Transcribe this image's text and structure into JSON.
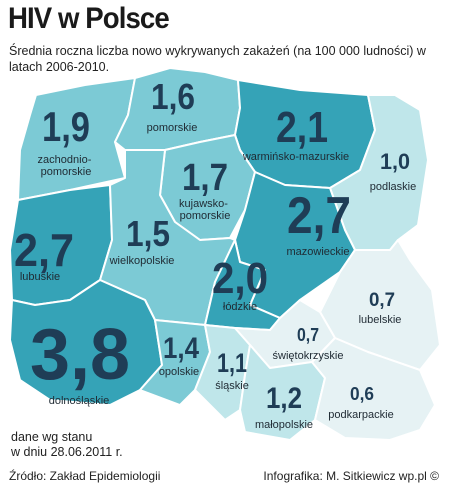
{
  "title": "HIV w Polsce",
  "subtitle": "Średnia roczna liczba nowo wykrywanych zakażeń (na 100 000 ludności) w latach 2006-2010.",
  "note_lines": [
    "dane wg stanu",
    "w dniu 28.06.2011 r."
  ],
  "source": "Źródło: Zakład Epidemiologii",
  "credit": "Infografika: M. Sitkiewicz wp.pl ©",
  "colors": {
    "level_high": "#35a3b7",
    "level_mid": "#7ccad5",
    "level_low": "#bfe6ea",
    "level_min": "#e6f2f4",
    "border": "#ffffff",
    "value_text": "#1f3d56"
  },
  "regions": [
    {
      "name": "zachodnio-\npomorskie",
      "value": "1,9"
    },
    {
      "name": "pomorskie",
      "value": "1,6"
    },
    {
      "name": "warmińsko-mazurskie",
      "value": "2,1"
    },
    {
      "name": "podlaskie",
      "value": "1,0"
    },
    {
      "name": "kujawsko-\npomorskie",
      "value": "1,7"
    },
    {
      "name": "mazowieckie",
      "value": "2,7"
    },
    {
      "name": "lubuskie",
      "value": "2,7"
    },
    {
      "name": "wielkopolskie",
      "value": "1,5"
    },
    {
      "name": "łódzkie",
      "value": "2,0"
    },
    {
      "name": "lubelskie",
      "value": "0,7"
    },
    {
      "name": "dolnośląskie",
      "value": "3,8"
    },
    {
      "name": "opolskie",
      "value": "1,4"
    },
    {
      "name": "śląskie",
      "value": "1,1"
    },
    {
      "name": "świętokrzyskie",
      "value": "0,7"
    },
    {
      "name": "małopolskie",
      "value": "1,2"
    },
    {
      "name": "podkarpackie",
      "value": "0,6"
    }
  ]
}
